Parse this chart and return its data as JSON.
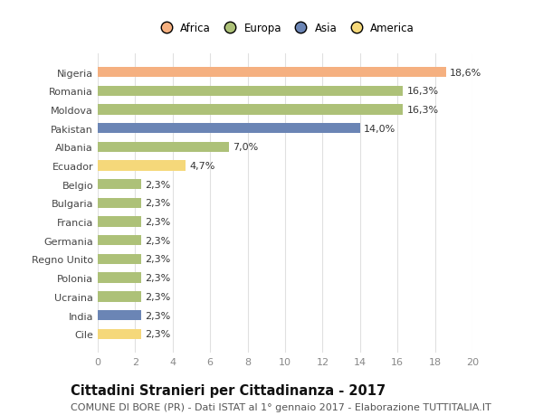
{
  "countries": [
    "Nigeria",
    "Romania",
    "Moldova",
    "Pakistan",
    "Albania",
    "Ecuador",
    "Belgio",
    "Bulgaria",
    "Francia",
    "Germania",
    "Regno Unito",
    "Polonia",
    "Ucraina",
    "India",
    "Cile"
  ],
  "values": [
    18.6,
    16.3,
    16.3,
    14.0,
    7.0,
    4.7,
    2.3,
    2.3,
    2.3,
    2.3,
    2.3,
    2.3,
    2.3,
    2.3,
    2.3
  ],
  "labels": [
    "18,6%",
    "16,3%",
    "16,3%",
    "14,0%",
    "7,0%",
    "4,7%",
    "2,3%",
    "2,3%",
    "2,3%",
    "2,3%",
    "2,3%",
    "2,3%",
    "2,3%",
    "2,3%",
    "2,3%"
  ],
  "colors": [
    "#f5b080",
    "#adc178",
    "#adc178",
    "#6b85b5",
    "#adc178",
    "#f5d87a",
    "#adc178",
    "#adc178",
    "#adc178",
    "#adc178",
    "#adc178",
    "#adc178",
    "#adc178",
    "#6b85b5",
    "#f5d87a"
  ],
  "continent_colors": {
    "Africa": "#f5b080",
    "Europa": "#adc178",
    "Asia": "#6b85b5",
    "America": "#f5d87a"
  },
  "xlim": [
    0,
    20
  ],
  "xticks": [
    0,
    2,
    4,
    6,
    8,
    10,
    12,
    14,
    16,
    18,
    20
  ],
  "title": "Cittadini Stranieri per Cittadinanza - 2017",
  "subtitle": "COMUNE DI BORE (PR) - Dati ISTAT al 1° gennaio 2017 - Elaborazione TUTTITALIA.IT",
  "background_color": "#ffffff",
  "grid_color": "#e0e0e0",
  "title_fontsize": 10.5,
  "subtitle_fontsize": 8,
  "label_fontsize": 8,
  "tick_fontsize": 8,
  "legend_fontsize": 8.5
}
